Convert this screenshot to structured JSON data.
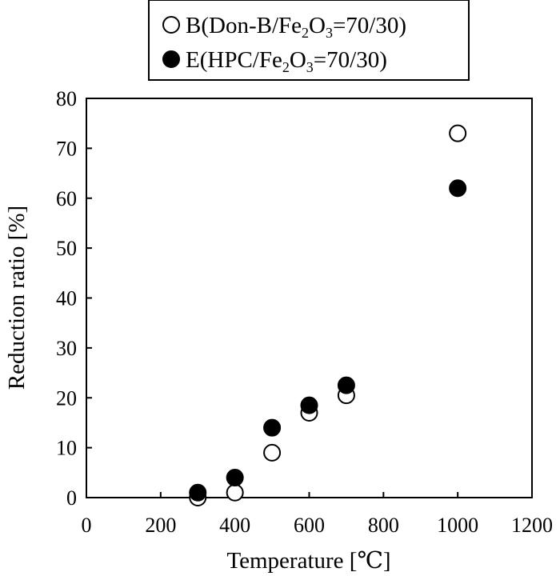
{
  "chart_data": {
    "type": "scatter",
    "xlabel": "Temperature [℃]",
    "ylabel": "Reduction ratio [%]",
    "xlim": [
      0,
      1200
    ],
    "ylim": [
      0,
      80
    ],
    "xticks": [
      0,
      200,
      400,
      600,
      800,
      1000,
      1200
    ],
    "yticks": [
      0,
      10,
      20,
      30,
      40,
      50,
      60,
      70,
      80
    ],
    "grid": false,
    "legend_position": "top",
    "series": [
      {
        "name": "B(Don-B/Fe2O3=70/30)",
        "legend_parts": [
          "B(Don-B/Fe",
          "2",
          "O",
          "3",
          "=70/30)"
        ],
        "marker": "open-circle",
        "color": "#000000",
        "x": [
          300,
          400,
          500,
          600,
          700,
          1000
        ],
        "y": [
          0,
          1,
          9,
          17,
          20.5,
          73
        ]
      },
      {
        "name": "E(HPC/Fe2O3=70/30)",
        "legend_parts": [
          "E(HPC/Fe",
          "2",
          "O",
          "3",
          "=70/30)"
        ],
        "marker": "filled-circle",
        "color": "#000000",
        "x": [
          300,
          400,
          500,
          600,
          700,
          1000
        ],
        "y": [
          1,
          4,
          14,
          18.5,
          22.5,
          62
        ]
      }
    ]
  }
}
